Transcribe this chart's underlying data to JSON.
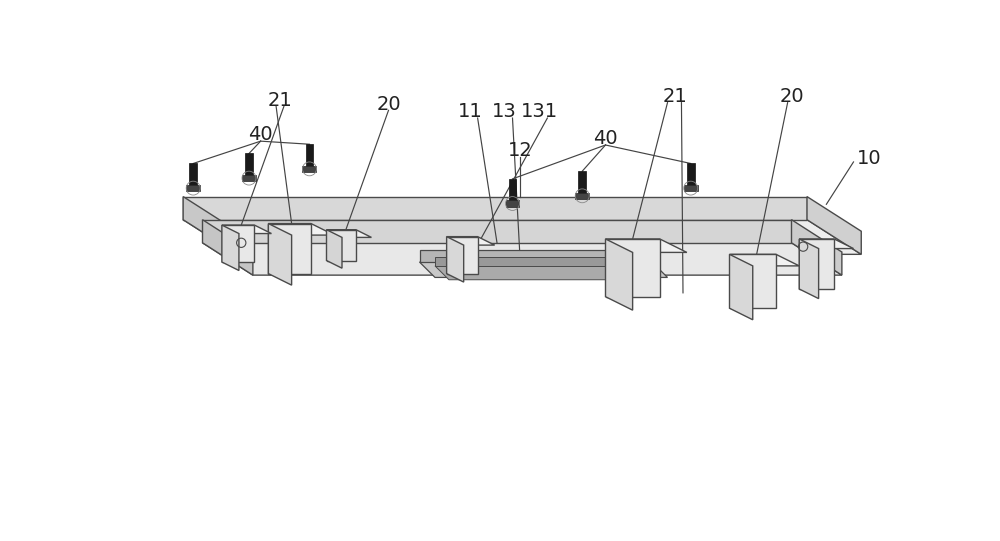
{
  "background_color": "#ffffff",
  "line_color": "#4a4a4a",
  "line_width": 1.0,
  "fig_width": 10.0,
  "fig_height": 5.41
}
